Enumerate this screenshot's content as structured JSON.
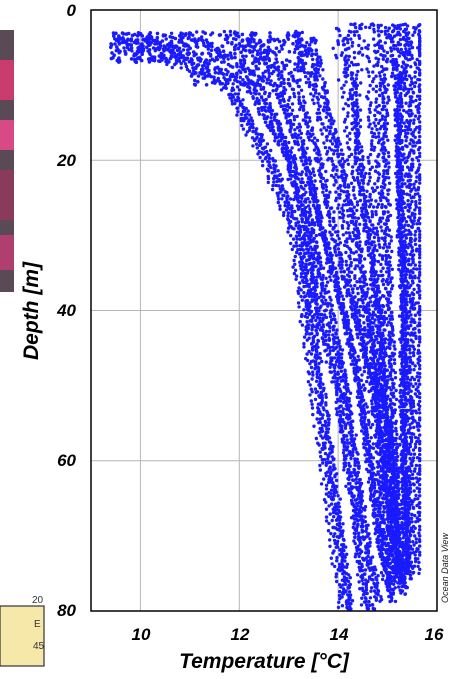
{
  "chart_data": {
    "type": "scatter",
    "title": "",
    "xlabel": "Temperature [°C]",
    "ylabel": "Depth [m]",
    "xlim": [
      9,
      16
    ],
    "ylim": [
      80,
      0
    ],
    "y_inverted": true,
    "x_ticks": [
      "10",
      "12",
      "14",
      "16"
    ],
    "y_ticks": [
      "0",
      "20",
      "40",
      "60",
      "80"
    ],
    "grid": true,
    "marker_color": "#1a1aff",
    "profiles_approx": [
      {
        "depth": [
          4,
          10,
          20,
          30,
          40,
          50,
          60,
          70,
          80
        ],
        "temperature": [
          9.6,
          11.8,
          12.6,
          13.2,
          13.4,
          13.6,
          13.8,
          14.0,
          14.2
        ]
      },
      {
        "depth": [
          4,
          10,
          20,
          30,
          40,
          50,
          60,
          70,
          80
        ],
        "temperature": [
          10.2,
          12.2,
          13.0,
          13.4,
          13.6,
          14.0,
          14.2,
          14.4,
          14.6
        ]
      },
      {
        "depth": [
          3,
          10,
          20,
          30,
          40,
          50,
          60,
          70,
          79
        ],
        "temperature": [
          11.0,
          12.6,
          13.2,
          13.6,
          14.0,
          14.3,
          14.5,
          14.7,
          15.0
        ]
      },
      {
        "depth": [
          3,
          10,
          20,
          30,
          40,
          50,
          60,
          70,
          78
        ],
        "temperature": [
          12.0,
          13.0,
          13.5,
          13.8,
          14.2,
          14.6,
          14.8,
          15.0,
          15.2
        ]
      },
      {
        "depth": [
          3,
          10,
          20,
          30,
          40,
          50,
          60,
          70,
          77
        ],
        "temperature": [
          13.2,
          13.6,
          14.0,
          14.3,
          14.5,
          14.8,
          15.0,
          15.1,
          15.3
        ]
      },
      {
        "depth": [
          2,
          10,
          20,
          30,
          40,
          50,
          60,
          70,
          76
        ],
        "temperature": [
          14.2,
          14.3,
          14.4,
          14.6,
          14.8,
          14.9,
          15.1,
          15.2,
          15.4
        ]
      },
      {
        "depth": [
          2,
          20,
          40,
          60,
          76
        ],
        "temperature": [
          14.8,
          14.8,
          14.9,
          15.0,
          15.1
        ]
      },
      {
        "depth": [
          2,
          20,
          40,
          60,
          75
        ],
        "temperature": [
          15.2,
          15.2,
          15.3,
          15.3,
          15.4
        ]
      },
      {
        "depth": [
          2,
          20,
          40,
          60,
          75
        ],
        "temperature": [
          15.5,
          15.5,
          15.5,
          15.5,
          15.5
        ]
      }
    ]
  },
  "credit": "Ocean Data View",
  "inset_numbers": [
    "20",
    "45"
  ],
  "inset_fragment_text": "E"
}
